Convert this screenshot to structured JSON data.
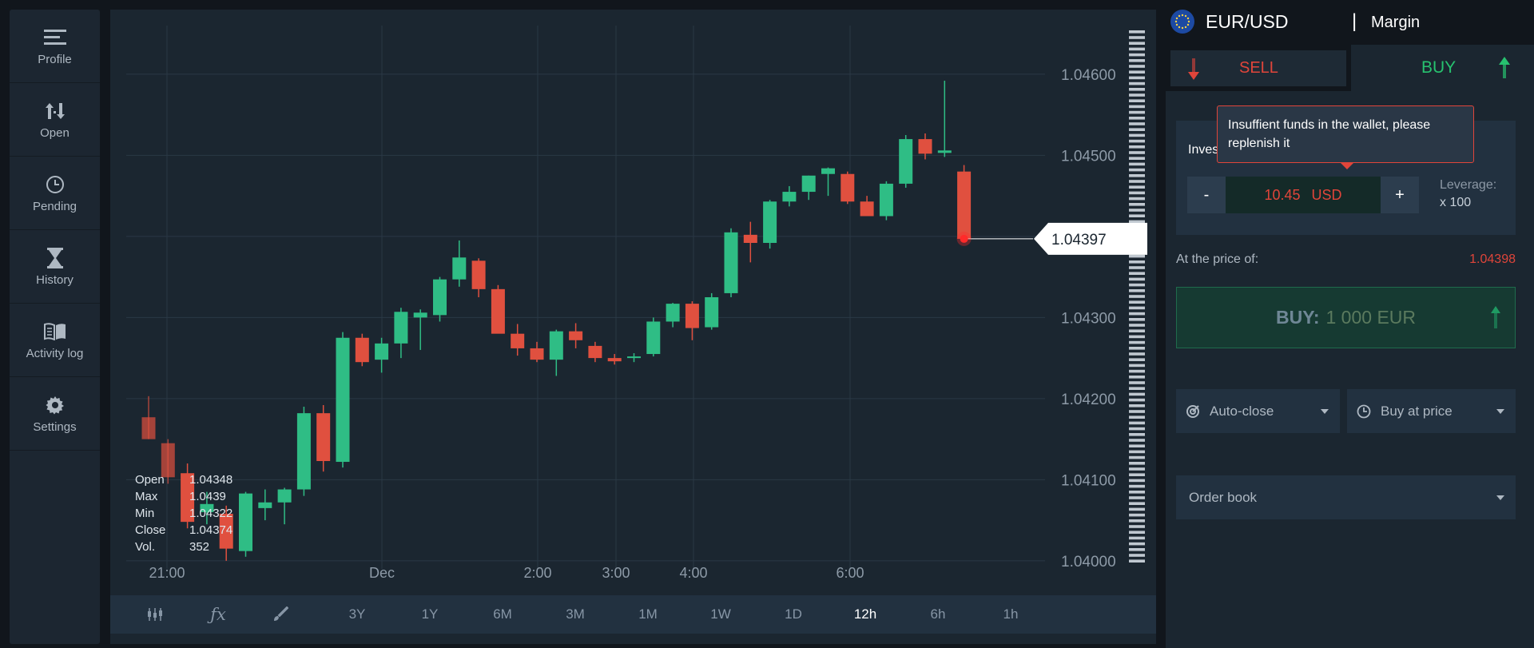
{
  "sidebar": {
    "items": [
      {
        "label": "Profile",
        "icon": "menu-icon"
      },
      {
        "label": "Open",
        "icon": "up-down-arrows-icon"
      },
      {
        "label": "Pending",
        "icon": "clock-icon"
      },
      {
        "label": "History",
        "icon": "hourglass-icon"
      },
      {
        "label": "Activity log",
        "icon": "book-icon"
      },
      {
        "label": "Settings",
        "icon": "gear-icon"
      }
    ]
  },
  "chart": {
    "current_price": "1.04397",
    "ohlc": {
      "open_label": "Open",
      "open": "1.04348",
      "max_label": "Max",
      "max": "1.0439",
      "min_label": "Min",
      "min": "1.04322",
      "close_label": "Close",
      "close": "1.04374",
      "vol_label": "Vol.",
      "vol": "352"
    },
    "toolbar": {
      "ranges": [
        "3Y",
        "1Y",
        "6M",
        "3M",
        "1M",
        "1W",
        "1D",
        "12h",
        "6h",
        "1h"
      ],
      "active": "12h",
      "tools": [
        "candles-icon",
        "function-icon",
        "brush-icon"
      ]
    }
  },
  "chart_data": {
    "type": "candlestick",
    "ylim": [
      1.0399,
      1.0466
    ],
    "y_ticks": [
      "1.04000",
      "1.04100",
      "1.04200",
      "1.04300",
      "1.04400",
      "1.04500",
      "1.04600"
    ],
    "x_ticks": [
      "21:00",
      "Dec",
      "2:00",
      "3:00",
      "4:00",
      "6:00"
    ],
    "candles": [
      {
        "o": 1.04177,
        "h": 1.04203,
        "l": 1.0415,
        "c": 1.0415
      },
      {
        "o": 1.04145,
        "h": 1.0415,
        "l": 1.04095,
        "c": 1.04103
      },
      {
        "o": 1.04108,
        "h": 1.0412,
        "l": 1.0404,
        "c": 1.04048
      },
      {
        "o": 1.0406,
        "h": 1.04085,
        "l": 1.04045,
        "c": 1.0407
      },
      {
        "o": 1.04058,
        "h": 1.04068,
        "l": 1.04,
        "c": 1.04015
      },
      {
        "o": 1.04012,
        "h": 1.04085,
        "l": 1.04005,
        "c": 1.04083
      },
      {
        "o": 1.04065,
        "h": 1.04088,
        "l": 1.0405,
        "c": 1.04072
      },
      {
        "o": 1.04072,
        "h": 1.0409,
        "l": 1.04045,
        "c": 1.04088
      },
      {
        "o": 1.04088,
        "h": 1.0419,
        "l": 1.0408,
        "c": 1.04182
      },
      {
        "o": 1.04182,
        "h": 1.04192,
        "l": 1.0411,
        "c": 1.04123
      },
      {
        "o": 1.04122,
        "h": 1.04282,
        "l": 1.04115,
        "c": 1.04275
      },
      {
        "o": 1.04275,
        "h": 1.0428,
        "l": 1.0424,
        "c": 1.04245
      },
      {
        "o": 1.04248,
        "h": 1.04275,
        "l": 1.04232,
        "c": 1.04268
      },
      {
        "o": 1.04268,
        "h": 1.04312,
        "l": 1.0425,
        "c": 1.04307
      },
      {
        "o": 1.043,
        "h": 1.0431,
        "l": 1.0426,
        "c": 1.04306
      },
      {
        "o": 1.04303,
        "h": 1.0435,
        "l": 1.04295,
        "c": 1.04347
      },
      {
        "o": 1.04347,
        "h": 1.04395,
        "l": 1.04338,
        "c": 1.04374
      },
      {
        "o": 1.0437,
        "h": 1.04373,
        "l": 1.04325,
        "c": 1.04335
      },
      {
        "o": 1.04335,
        "h": 1.0434,
        "l": 1.04285,
        "c": 1.0428
      },
      {
        "o": 1.0428,
        "h": 1.04292,
        "l": 1.04253,
        "c": 1.04262
      },
      {
        "o": 1.04262,
        "h": 1.0427,
        "l": 1.04245,
        "c": 1.04248
      },
      {
        "o": 1.04248,
        "h": 1.04285,
        "l": 1.04228,
        "c": 1.04283
      },
      {
        "o": 1.04283,
        "h": 1.04293,
        "l": 1.04262,
        "c": 1.04272
      },
      {
        "o": 1.04265,
        "h": 1.0427,
        "l": 1.04245,
        "c": 1.0425
      },
      {
        "o": 1.0425,
        "h": 1.04255,
        "l": 1.04242,
        "c": 1.04246
      },
      {
        "o": 1.0425,
        "h": 1.04256,
        "l": 1.04245,
        "c": 1.04252
      },
      {
        "o": 1.04255,
        "h": 1.043,
        "l": 1.04252,
        "c": 1.04295
      },
      {
        "o": 1.04295,
        "h": 1.04318,
        "l": 1.04288,
        "c": 1.04317
      },
      {
        "o": 1.04317,
        "h": 1.0432,
        "l": 1.04272,
        "c": 1.04287
      },
      {
        "o": 1.04288,
        "h": 1.0433,
        "l": 1.04285,
        "c": 1.04325
      },
      {
        "o": 1.0433,
        "h": 1.0441,
        "l": 1.04325,
        "c": 1.04405
      },
      {
        "o": 1.04402,
        "h": 1.04418,
        "l": 1.04368,
        "c": 1.04392
      },
      {
        "o": 1.04392,
        "h": 1.04445,
        "l": 1.04385,
        "c": 1.04443
      },
      {
        "o": 1.04443,
        "h": 1.04462,
        "l": 1.04437,
        "c": 1.04455
      },
      {
        "o": 1.04455,
        "h": 1.04475,
        "l": 1.04445,
        "c": 1.04475
      },
      {
        "o": 1.04477,
        "h": 1.04485,
        "l": 1.0445,
        "c": 1.04484
      },
      {
        "o": 1.04477,
        "h": 1.0448,
        "l": 1.0444,
        "c": 1.04443
      },
      {
        "o": 1.04443,
        "h": 1.0445,
        "l": 1.04425,
        "c": 1.04425
      },
      {
        "o": 1.04425,
        "h": 1.04468,
        "l": 1.0442,
        "c": 1.04465
      },
      {
        "o": 1.04465,
        "h": 1.04525,
        "l": 1.0446,
        "c": 1.0452
      },
      {
        "o": 1.0452,
        "h": 1.04527,
        "l": 1.04495,
        "c": 1.04502
      },
      {
        "o": 1.04503,
        "h": 1.04592,
        "l": 1.04498,
        "c": 1.04506
      },
      {
        "o": 1.0448,
        "h": 1.04488,
        "l": 1.04395,
        "c": 1.04397
      }
    ]
  },
  "right": {
    "pair": "EUR/USD",
    "separator": "|",
    "mode": "Margin",
    "sell_label": "SELL",
    "buy_label": "BUY",
    "invest_label": "Inves",
    "tooltip": "Insuffient funds in the wallet, please replenish it",
    "minus": "-",
    "plus": "+",
    "amount": "10.45",
    "currency": "USD",
    "leverage_label": "Leverage:",
    "leverage_value": "x 100",
    "price_label": "At the price of:",
    "price_value": "1.04398",
    "buy_button_label": "BUY:",
    "buy_button_amount": "1 000 EUR",
    "autoclose_label": "Auto-close",
    "buyatprice_label": "Buy at price",
    "orderbook_label": "Order book"
  },
  "colors": {
    "up": "#2fbd85",
    "down": "#e0503f",
    "panel": "#1b2630",
    "accent_green": "#27c26f",
    "accent_red": "#e0453a"
  }
}
